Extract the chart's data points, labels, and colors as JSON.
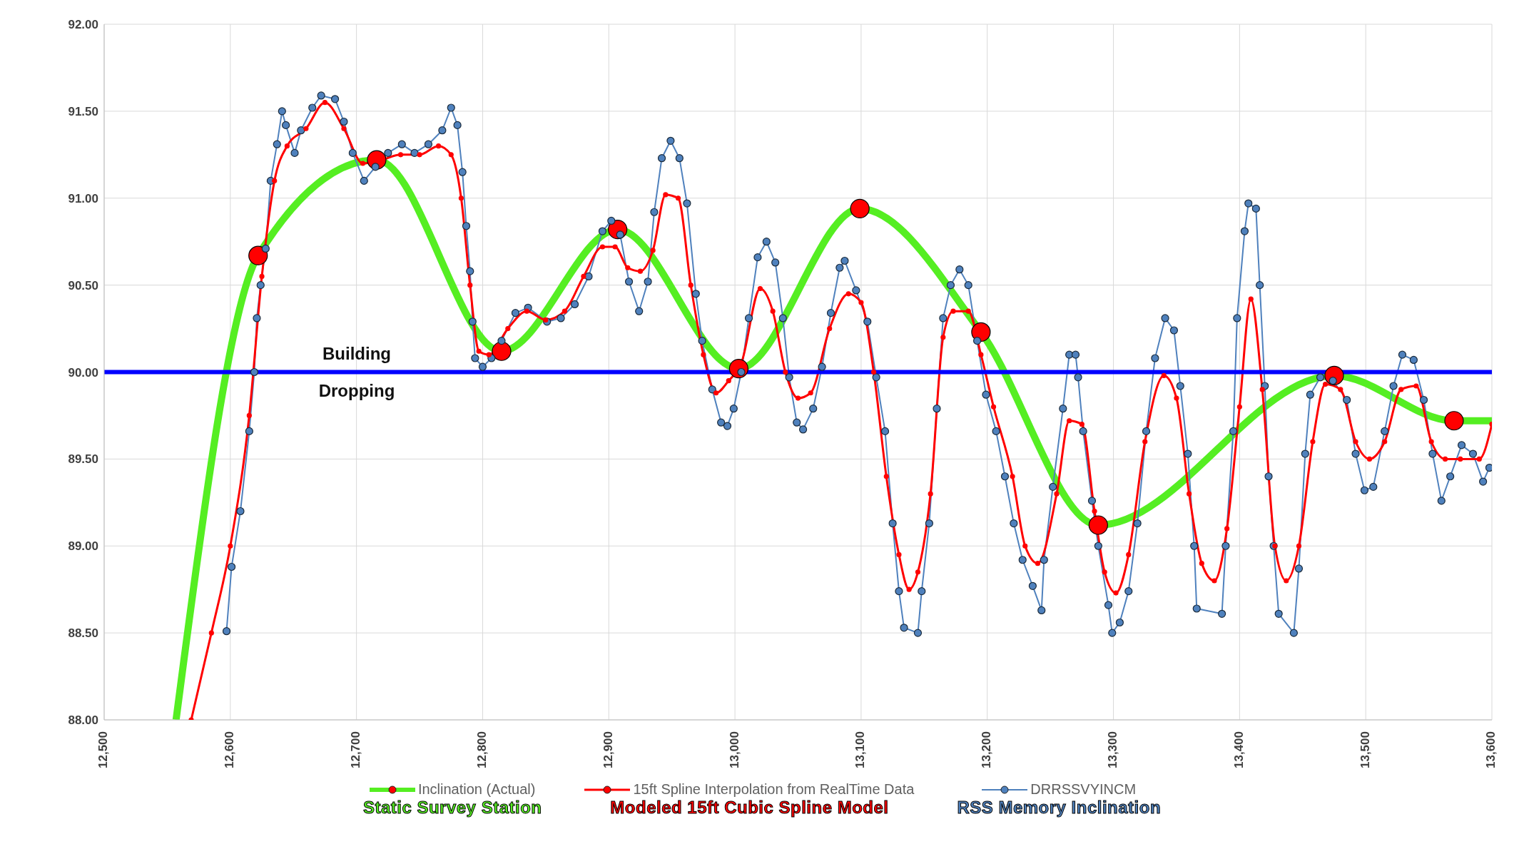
{
  "chart_data": {
    "type": "line",
    "xlim": [
      12500,
      13600
    ],
    "xticks": [
      {
        "value": 12500,
        "label": "12,500"
      },
      {
        "value": 12600,
        "label": "12,600"
      },
      {
        "value": 12700,
        "label": "12,700"
      },
      {
        "value": 12800,
        "label": "12,800"
      },
      {
        "value": 12900,
        "label": "12,900"
      },
      {
        "value": 13000,
        "label": "13,000"
      },
      {
        "value": 13100,
        "label": "13,100"
      },
      {
        "value": 13200,
        "label": "13,200"
      },
      {
        "value": 13300,
        "label": "13,300"
      },
      {
        "value": 13400,
        "label": "13,400"
      },
      {
        "value": 13500,
        "label": "13,500"
      },
      {
        "value": 13600,
        "label": "13,600"
      }
    ],
    "ylim": [
      88,
      92
    ],
    "yticks": [
      {
        "value": 88,
        "label": "88.00"
      },
      {
        "value": 88.5,
        "label": "88.50"
      },
      {
        "value": 89,
        "label": "89.00"
      },
      {
        "value": 89.5,
        "label": "89.50"
      },
      {
        "value": 90,
        "label": "90.00"
      },
      {
        "value": 90.5,
        "label": "90.50"
      },
      {
        "value": 91,
        "label": "91.00"
      },
      {
        "value": 91.5,
        "label": "91.50"
      },
      {
        "value": 92,
        "label": "92.00"
      }
    ],
    "grid": true,
    "legend": "bottom",
    "ref_lines": [
      {
        "axis": "y",
        "value": 90,
        "label": null,
        "color": "#0000ff"
      }
    ],
    "annotations": [
      "Building",
      "Dropping",
      "Static Survey Station",
      "Modeled 15ft Cubic Spline Model",
      "RSS Memory Inclination"
    ],
    "series": [
      {
        "name": "Inclination (Actual)",
        "color": "#55ee22",
        "marker": "circle",
        "x": [
          12557,
          12622,
          12716,
          12815,
          12907,
          13003,
          13099,
          13195,
          13288,
          13475,
          13570,
          13600
        ],
        "values": [
          88.0,
          90.67,
          91.22,
          90.12,
          90.82,
          90.02,
          90.94,
          90.23,
          89.12,
          89.98,
          89.72,
          89.72
        ],
        "colors": [
          null,
          "#ff0000",
          "#ff0000",
          "#ff0000",
          "#ff0000",
          "#ff0000",
          "#ff0000",
          "#ff0000",
          "#ff0000",
          "#ff0000",
          "#ff0000",
          null
        ]
      },
      {
        "name": "15ft Spline Interpolation from RealTime Data",
        "color": "#ff0000",
        "marker": "circle",
        "x": [
          12569,
          12585,
          12600,
          12615,
          12625,
          12635,
          12645,
          12660,
          12675,
          12690,
          12705,
          12720,
          12735,
          12750,
          12765,
          12775,
          12783,
          12790,
          12797,
          12805,
          12820,
          12835,
          12850,
          12865,
          12880,
          12895,
          12905,
          12915,
          12925,
          12935,
          12945,
          12955,
          12965,
          12975,
          12985,
          12995,
          13005,
          13020,
          13030,
          13040,
          13050,
          13060,
          13075,
          13090,
          13100,
          13110,
          13120,
          13130,
          13138,
          13145,
          13155,
          13165,
          13173,
          13185,
          13195,
          13205,
          13220,
          13230,
          13240,
          13255,
          13265,
          13275,
          13285,
          13293,
          13302,
          13312,
          13325,
          13340,
          13350,
          13360,
          13370,
          13380,
          13390,
          13400,
          13409,
          13418,
          13428,
          13437,
          13447,
          13458,
          13468,
          13480,
          13492,
          13503,
          13515,
          13528,
          13540,
          13552,
          13563,
          13575,
          13590,
          13600
        ],
        "values": [
          88.0,
          88.5,
          89.0,
          89.75,
          90.55,
          91.1,
          91.3,
          91.4,
          91.55,
          91.4,
          91.2,
          91.22,
          91.25,
          91.25,
          91.3,
          91.25,
          91.0,
          90.5,
          90.12,
          90.1,
          90.25,
          90.35,
          90.3,
          90.35,
          90.55,
          90.72,
          90.72,
          90.6,
          90.58,
          90.7,
          91.02,
          91.0,
          90.5,
          90.1,
          89.88,
          89.95,
          90.05,
          90.48,
          90.35,
          90.0,
          89.85,
          89.88,
          90.25,
          90.45,
          90.4,
          90.0,
          89.4,
          88.95,
          88.75,
          88.85,
          89.3,
          90.2,
          90.35,
          90.35,
          90.1,
          89.8,
          89.4,
          89.0,
          88.9,
          89.3,
          89.72,
          89.7,
          89.2,
          88.85,
          88.73,
          88.95,
          89.6,
          89.98,
          89.85,
          89.3,
          88.9,
          88.8,
          89.1,
          89.8,
          90.42,
          89.9,
          89.0,
          88.8,
          89.0,
          89.6,
          89.93,
          89.9,
          89.6,
          89.5,
          89.6,
          89.9,
          89.92,
          89.6,
          89.5,
          89.5,
          89.5,
          89.7
        ]
      },
      {
        "name": "DRRSSVYINCM",
        "color": "#4f81bd",
        "marker": "circle",
        "x": [
          12597,
          12601,
          12608,
          12615,
          12619,
          12621,
          12624,
          12628,
          12632,
          12637,
          12641,
          12644,
          12651,
          12656,
          12665,
          12672,
          12683,
          12690,
          12697,
          12706,
          12715,
          12725,
          12736,
          12746,
          12757,
          12768,
          12775,
          12780,
          12784,
          12787,
          12790,
          12792,
          12794,
          12800,
          12807,
          12815,
          12826,
          12836,
          12851,
          12862,
          12873,
          12884,
          12895,
          12902,
          12909,
          12916,
          12924,
          12931,
          12936,
          12942,
          12949,
          12956,
          12962,
          12969,
          12974,
          12982,
          12989,
          12994,
          12999,
          13005,
          13011,
          13018,
          13025,
          13032,
          13038,
          13043,
          13049,
          13054,
          13062,
          13069,
          13076,
          13083,
          13087,
          13096,
          13105,
          13112,
          13119,
          13125,
          13130,
          13134,
          13145,
          13148,
          13154,
          13160,
          13165,
          13171,
          13178,
          13185,
          13192,
          13199,
          13207,
          13214,
          13221,
          13228,
          13236,
          13243,
          13245,
          13252,
          13260,
          13265,
          13270,
          13272,
          13276,
          13283,
          13288,
          13296,
          13299,
          13305,
          13312,
          13319,
          13326,
          13333,
          13341,
          13348,
          13353,
          13359,
          13364,
          13366,
          13386,
          13389,
          13395,
          13398,
          13404,
          13407,
          13413,
          13416,
          13420,
          13423,
          13427,
          13431,
          13443,
          13447,
          13452,
          13456,
          13464,
          13474,
          13485,
          13492,
          13499,
          13506,
          13515,
          13522,
          13529,
          13538,
          13546,
          13553,
          13560,
          13567,
          13576,
          13585,
          13593,
          13598
        ],
        "values": [
          88.51,
          88.88,
          89.2,
          89.66,
          90.0,
          90.31,
          90.5,
          90.71,
          91.1,
          91.31,
          91.5,
          91.42,
          91.26,
          91.39,
          91.52,
          91.59,
          91.57,
          91.44,
          91.26,
          91.1,
          91.18,
          91.26,
          91.31,
          91.26,
          91.31,
          91.39,
          91.52,
          91.42,
          91.15,
          90.84,
          90.58,
          90.29,
          90.08,
          90.03,
          90.08,
          90.18,
          90.34,
          90.37,
          90.29,
          90.31,
          90.39,
          90.55,
          90.81,
          90.87,
          90.79,
          90.52,
          90.35,
          90.52,
          90.92,
          91.23,
          91.33,
          91.23,
          90.97,
          90.45,
          90.18,
          89.9,
          89.71,
          89.69,
          89.79,
          90.0,
          90.31,
          90.66,
          90.75,
          90.63,
          90.31,
          89.97,
          89.71,
          89.67,
          89.79,
          90.03,
          90.34,
          90.6,
          90.64,
          90.47,
          90.29,
          89.97,
          89.66,
          89.13,
          88.74,
          88.53,
          88.5,
          88.74,
          89.13,
          89.79,
          90.31,
          90.5,
          90.59,
          90.5,
          90.18,
          89.87,
          89.66,
          89.4,
          89.13,
          88.92,
          88.77,
          88.63,
          88.92,
          89.34,
          89.79,
          90.1,
          90.1,
          89.97,
          89.66,
          89.26,
          89.0,
          88.66,
          88.5,
          88.56,
          88.74,
          89.13,
          89.66,
          90.08,
          90.31,
          90.24,
          89.92,
          89.53,
          89.0,
          88.64,
          88.61,
          89.0,
          89.66,
          90.31,
          90.81,
          90.97,
          90.94,
          90.5,
          89.92,
          89.4,
          89.0,
          88.61,
          88.5,
          88.87,
          89.53,
          89.87,
          89.97,
          89.95,
          89.84,
          89.53,
          89.32,
          89.34,
          89.66,
          89.92,
          90.1,
          90.07,
          89.84,
          89.53,
          89.26,
          89.4,
          89.58,
          89.53,
          89.37,
          89.45
        ]
      }
    ]
  }
}
